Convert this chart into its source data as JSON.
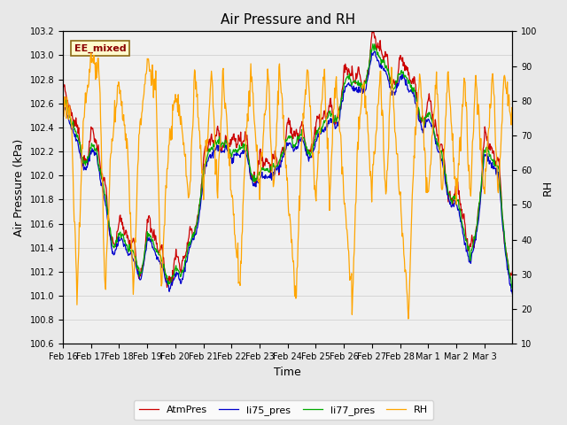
{
  "title": "Air Pressure and RH",
  "xlabel": "Time",
  "ylabel_left": "Air Pressure (kPa)",
  "ylabel_right": "RH",
  "ylim_left": [
    100.6,
    103.2
  ],
  "ylim_right": [
    10,
    100
  ],
  "yticks_left": [
    100.6,
    100.8,
    101.0,
    101.2,
    101.4,
    101.6,
    101.8,
    102.0,
    102.2,
    102.4,
    102.6,
    102.8,
    103.0,
    103.2
  ],
  "yticks_right": [
    10,
    20,
    30,
    40,
    50,
    60,
    70,
    80,
    90,
    100
  ],
  "annotation_text": "EE_mixed",
  "annotation_color": "#8B0000",
  "annotation_bg": "#FFFACD",
  "annotation_border": "#8B6914",
  "line_colors": {
    "AtmPres": "#CC0000",
    "li75_pres": "#0000CC",
    "li77_pres": "#00AA00",
    "RH": "#FFA500"
  },
  "legend_labels": [
    "AtmPres",
    "li75_pres",
    "li77_pres",
    "RH"
  ],
  "grid_color": "#CCCCCC",
  "fig_bg_color": "#E8E8E8",
  "plot_bg_color": "#F0F0F0",
  "figsize": [
    6.4,
    4.8
  ],
  "dpi": 100
}
